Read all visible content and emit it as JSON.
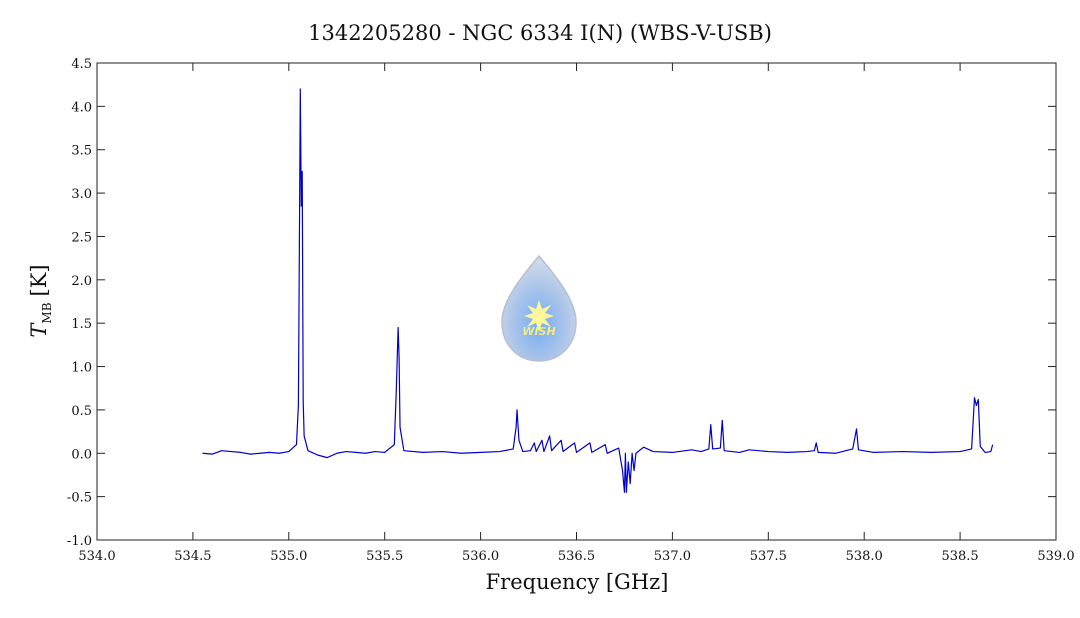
{
  "chart_data": {
    "type": "line",
    "title": "1342205280 - NGC 6334 I(N) (WBS-V-USB)",
    "xlabel": "Frequency [GHz]",
    "ylabel": {
      "symbol": "T",
      "subscript": "MB",
      "unit": "[K]"
    },
    "watermark": "WISH",
    "color": "#0000cc",
    "xlim": [
      534.0,
      539.0
    ],
    "ylim": [
      -1.0,
      4.5
    ],
    "xticks": [
      {
        "value": 534,
        "label": "534.0"
      },
      534.5,
      {
        "value": 535,
        "label": "535.0"
      },
      535.5,
      {
        "value": 536,
        "label": "536.0"
      },
      536.5,
      {
        "value": 537,
        "label": "537.0"
      },
      537.5,
      {
        "value": 538,
        "label": "538.0"
      },
      538.5,
      {
        "value": 539,
        "label": "539.0"
      }
    ],
    "yticks": [
      {
        "value": -1,
        "label": "-1.0"
      },
      -0.5,
      {
        "value": 0,
        "label": "0.0"
      },
      0.5,
      {
        "value": 1,
        "label": "1.0"
      },
      1.5,
      {
        "value": 2,
        "label": "2.0"
      },
      2.5,
      {
        "value": 3,
        "label": "3.0"
      },
      3.5,
      {
        "value": 4,
        "label": "4.0"
      },
      4.5
    ],
    "x": [
      534.55,
      534.6,
      534.65,
      534.7,
      534.75,
      534.8,
      534.85,
      534.9,
      534.95,
      535.0,
      535.04,
      535.05,
      535.055,
      535.06,
      535.065,
      535.07,
      535.075,
      535.08,
      535.1,
      535.15,
      535.2,
      535.25,
      535.3,
      535.35,
      535.4,
      535.45,
      535.5,
      535.55,
      535.56,
      535.57,
      535.575,
      535.58,
      535.6,
      535.7,
      535.8,
      535.9,
      536.0,
      536.1,
      536.17,
      536.185,
      536.19,
      536.2,
      536.22,
      536.26,
      536.28,
      536.29,
      536.32,
      536.33,
      536.36,
      536.37,
      536.42,
      536.43,
      536.49,
      536.5,
      536.57,
      536.58,
      536.65,
      536.66,
      536.72,
      536.74,
      536.75,
      536.755,
      536.76,
      536.77,
      536.78,
      536.79,
      536.8,
      536.81,
      536.85,
      536.9,
      537.0,
      537.1,
      537.15,
      537.19,
      537.2,
      537.21,
      537.25,
      537.26,
      537.27,
      537.35,
      537.4,
      537.5,
      537.6,
      537.7,
      537.74,
      537.75,
      537.76,
      537.85,
      537.94,
      537.96,
      537.97,
      538.05,
      538.2,
      538.35,
      538.5,
      538.56,
      538.575,
      538.585,
      538.595,
      538.605,
      538.63,
      538.66,
      538.67
    ],
    "values": [
      0.0,
      -0.01,
      0.03,
      0.02,
      0.01,
      -0.01,
      0.0,
      0.01,
      0.0,
      0.02,
      0.1,
      0.55,
      2.35,
      4.2,
      2.85,
      3.25,
      0.6,
      0.2,
      0.03,
      -0.02,
      -0.05,
      0.0,
      0.02,
      0.01,
      0.0,
      0.02,
      0.01,
      0.1,
      0.7,
      1.45,
      1.1,
      0.3,
      0.03,
      0.01,
      0.02,
      0.0,
      0.01,
      0.02,
      0.05,
      0.3,
      0.5,
      0.15,
      0.02,
      0.03,
      0.12,
      0.02,
      0.15,
      0.02,
      0.2,
      0.03,
      0.15,
      0.02,
      0.12,
      0.01,
      0.12,
      0.01,
      0.1,
      0.0,
      0.06,
      -0.2,
      -0.45,
      0.0,
      -0.45,
      -0.1,
      -0.35,
      0.0,
      -0.2,
      0.0,
      0.07,
      0.02,
      0.01,
      0.04,
      0.02,
      0.05,
      0.33,
      0.05,
      0.06,
      0.38,
      0.03,
      0.01,
      0.04,
      0.02,
      0.01,
      0.02,
      0.03,
      0.12,
      0.01,
      0.0,
      0.05,
      0.28,
      0.04,
      0.01,
      0.02,
      0.01,
      0.02,
      0.05,
      0.64,
      0.55,
      0.62,
      0.08,
      0.01,
      0.02,
      0.1
    ]
  }
}
